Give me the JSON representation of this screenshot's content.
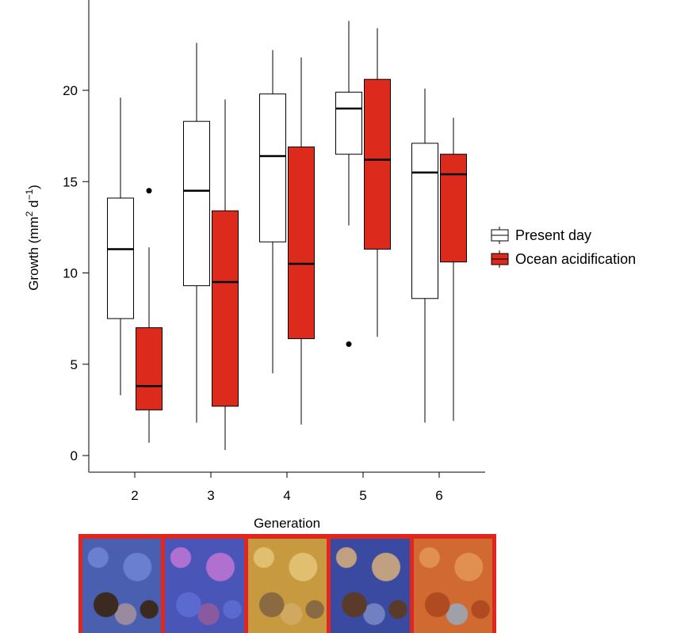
{
  "chart_data": {
    "type": "boxplot",
    "title": "",
    "xlabel": "Generation",
    "ylabel": "Growth (mm² d⁻¹)",
    "ylabel_parts": {
      "base": "Growth (mm",
      "sup1": "2",
      "mid": " d",
      "sup2": "−1",
      "end": ")"
    },
    "ylim": [
      -1,
      25
    ],
    "yticks": [
      0,
      5,
      10,
      15,
      20
    ],
    "categories": [
      "2",
      "3",
      "4",
      "5",
      "6"
    ],
    "legend": {
      "placement": "right"
    },
    "series": [
      {
        "name": "Present day",
        "color": "#ffffff",
        "boxes": [
          {
            "generation": "2",
            "whisker_low": 3.3,
            "q1": 7.5,
            "median": 11.3,
            "q3": 14.1,
            "whisker_high": 19.6,
            "outliers": []
          },
          {
            "generation": "3",
            "whisker_low": 1.8,
            "q1": 9.3,
            "median": 14.5,
            "q3": 18.3,
            "whisker_high": 22.6,
            "outliers": []
          },
          {
            "generation": "4",
            "whisker_low": 4.5,
            "q1": 11.7,
            "median": 16.4,
            "q3": 19.8,
            "whisker_high": 22.2,
            "outliers": []
          },
          {
            "generation": "5",
            "whisker_low": 12.6,
            "q1": 16.5,
            "median": 19.0,
            "q3": 19.9,
            "whisker_high": 23.8,
            "outliers": [
              6.1
            ]
          },
          {
            "generation": "6",
            "whisker_low": 1.8,
            "q1": 8.6,
            "median": 15.5,
            "q3": 17.1,
            "whisker_high": 20.1,
            "outliers": []
          }
        ]
      },
      {
        "name": "Ocean acidification",
        "color": "#dc2a1d",
        "boxes": [
          {
            "generation": "2",
            "whisker_low": 0.7,
            "q1": 2.5,
            "median": 3.8,
            "q3": 7.0,
            "whisker_high": 11.4,
            "outliers": [
              14.5
            ]
          },
          {
            "generation": "3",
            "whisker_low": 0.3,
            "q1": 2.7,
            "median": 9.5,
            "q3": 13.4,
            "whisker_high": 19.5,
            "outliers": []
          },
          {
            "generation": "4",
            "whisker_low": 1.7,
            "q1": 6.4,
            "median": 10.5,
            "q3": 16.9,
            "whisker_high": 21.8,
            "outliers": []
          },
          {
            "generation": "5",
            "whisker_low": 6.5,
            "q1": 11.3,
            "median": 16.2,
            "q3": 20.6,
            "whisker_high": 23.4,
            "outliers": []
          },
          {
            "generation": "6",
            "whisker_low": 1.9,
            "q1": 10.6,
            "median": 15.4,
            "q3": 16.5,
            "whisker_high": 18.5,
            "outliers": []
          }
        ]
      }
    ]
  },
  "photos": {
    "frame_color": "#e0261f",
    "panels": [
      {
        "generation": "2",
        "colors": [
          "#4a5fb0",
          "#6a7fd0",
          "#3a2a20",
          "#9a8aa0"
        ]
      },
      {
        "generation": "3",
        "colors": [
          "#4a55b8",
          "#b070d0",
          "#5a6ad0",
          "#8a5aa0"
        ]
      },
      {
        "generation": "4",
        "colors": [
          "#c89a40",
          "#e0c070",
          "#8a6a40",
          "#d0a860"
        ]
      },
      {
        "generation": "5",
        "colors": [
          "#3a4aa0",
          "#c0a080",
          "#5a3a28",
          "#7080c0"
        ]
      },
      {
        "generation": "6",
        "colors": [
          "#d06a30",
          "#e09050",
          "#b04a20",
          "#a0a0a8"
        ]
      }
    ]
  }
}
